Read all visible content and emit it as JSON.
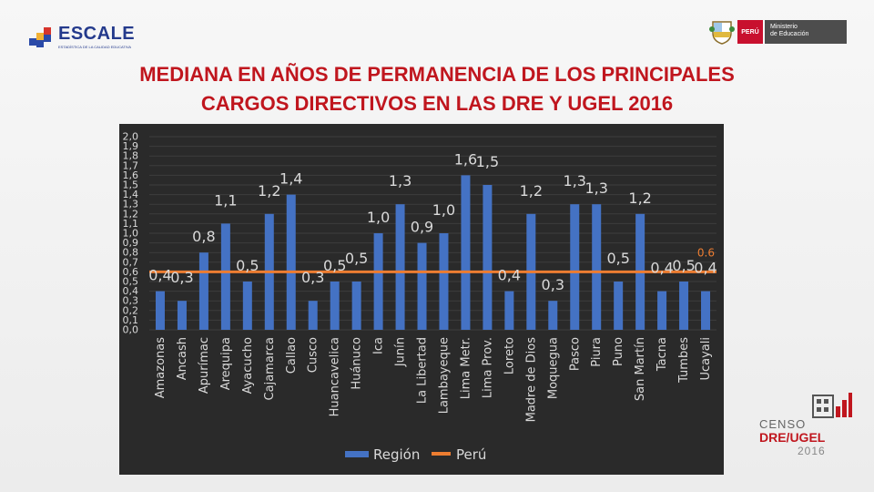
{
  "header": {
    "escale_name": "ESCALE",
    "escale_tagline": "ESTADÍSTICA DE LA CALIDAD EDUCATIVA",
    "peru_label": "PERÚ",
    "ministry_line1": "Ministerio",
    "ministry_line2": "de Educación"
  },
  "title": {
    "line1": "MEDIANA EN AÑOS DE PERMANENCIA DE LOS PRINCIPALES",
    "line2": "CARGOS DIRECTIVOS EN LAS DRE Y UGEL 2016"
  },
  "censo": {
    "word": "CENSO",
    "dre": "DRE/UGEL",
    "year": "2016"
  },
  "colors": {
    "bar": "#4472c4",
    "peru_line": "#ed7d31",
    "label": "#d9d9d9",
    "title": "#c0161e"
  },
  "chart_data": {
    "type": "bar",
    "title": "MEDIANA EN AÑOS DE PERMANENCIA DE LOS PRINCIPALES CARGOS DIRECTIVOS EN LAS DRE Y UGEL 2016",
    "categories": [
      "Amazonas",
      "Ancash",
      "Apurímac",
      "Arequipa",
      "Ayacucho",
      "Cajamarca",
      "Callao",
      "Cusco",
      "Huancavelica",
      "Huánuco",
      "Ica",
      "Junín",
      "La Libertad",
      "Lambayeque",
      "Lima Metr.",
      "Lima Prov.",
      "Loreto",
      "Madre de Dios",
      "Moquegua",
      "Pasco",
      "Piura",
      "Puno",
      "San Martín",
      "Tacna",
      "Tumbes",
      "Ucayali"
    ],
    "series": [
      {
        "name": "Región",
        "type": "bar",
        "values": [
          0.4,
          0.3,
          0.8,
          1.1,
          0.5,
          1.2,
          1.4,
          0.3,
          0.5,
          0.5,
          1.0,
          1.3,
          0.9,
          1.0,
          1.6,
          1.5,
          0.4,
          1.2,
          0.3,
          1.3,
          1.3,
          0.5,
          1.2,
          0.4,
          0.5,
          0.4
        ]
      },
      {
        "name": "Perú",
        "type": "line",
        "value": 0.6
      }
    ],
    "data_labels": [
      {
        "category": "Amazonas",
        "text": "0,4"
      },
      {
        "category": "Ancash",
        "text": "0,3"
      },
      {
        "category": "Apurímac",
        "text": "0,8"
      },
      {
        "category": "Arequipa",
        "text": "1,1"
      },
      {
        "category": "Ayacucho",
        "text": "0,5"
      },
      {
        "category": "Cajamarca",
        "text": "1,2"
      },
      {
        "category": "Callao",
        "text": "1,4"
      },
      {
        "category": "Cusco",
        "text": "0,3"
      },
      {
        "category": "Huancavelica",
        "text": "0,5"
      },
      {
        "category": "Huánuco",
        "text": "0,5"
      },
      {
        "category": "Ica",
        "text": "1,0"
      },
      {
        "category": "Junín",
        "text": "1,3"
      },
      {
        "category": "La Libertad",
        "text": "0,9"
      },
      {
        "category": "Lambayeque",
        "text": "1,0"
      },
      {
        "category": "Lima Metr.",
        "text": "1,6"
      },
      {
        "category": "Lima Prov.",
        "text": "1,5"
      },
      {
        "category": "Loreto",
        "text": "0,4"
      },
      {
        "category": "Madre de Dios",
        "text": "1,2"
      },
      {
        "category": "Moquegua",
        "text": "0,3"
      },
      {
        "category": "Pasco",
        "text": "1,3"
      },
      {
        "category": "Piura",
        "text": "1,3"
      },
      {
        "category": "Puno",
        "text": "0,5"
      },
      {
        "category": "San Martín",
        "text": "1,2"
      },
      {
        "category": "Tacna",
        "text": "0,4"
      },
      {
        "category": "Tumbes",
        "text": "0,5"
      },
      {
        "category": "Ucayali",
        "text": "0,4"
      }
    ],
    "peru_label": "0.6",
    "ylim": [
      0,
      2.0
    ],
    "y_ticks": [
      "0,0",
      "0,1",
      "0,2",
      "0,3",
      "0,4",
      "0,5",
      "0,6",
      "0,7",
      "0,8",
      "0,9",
      "1,0",
      "1,1",
      "1,2",
      "1,3",
      "1,4",
      "1,5",
      "1,6",
      "1,7",
      "1,8",
      "1,9",
      "2,0"
    ],
    "legend": [
      "Región",
      "Perú"
    ],
    "legend_position": "bottom",
    "grid": true,
    "xlabel": "",
    "ylabel": ""
  }
}
